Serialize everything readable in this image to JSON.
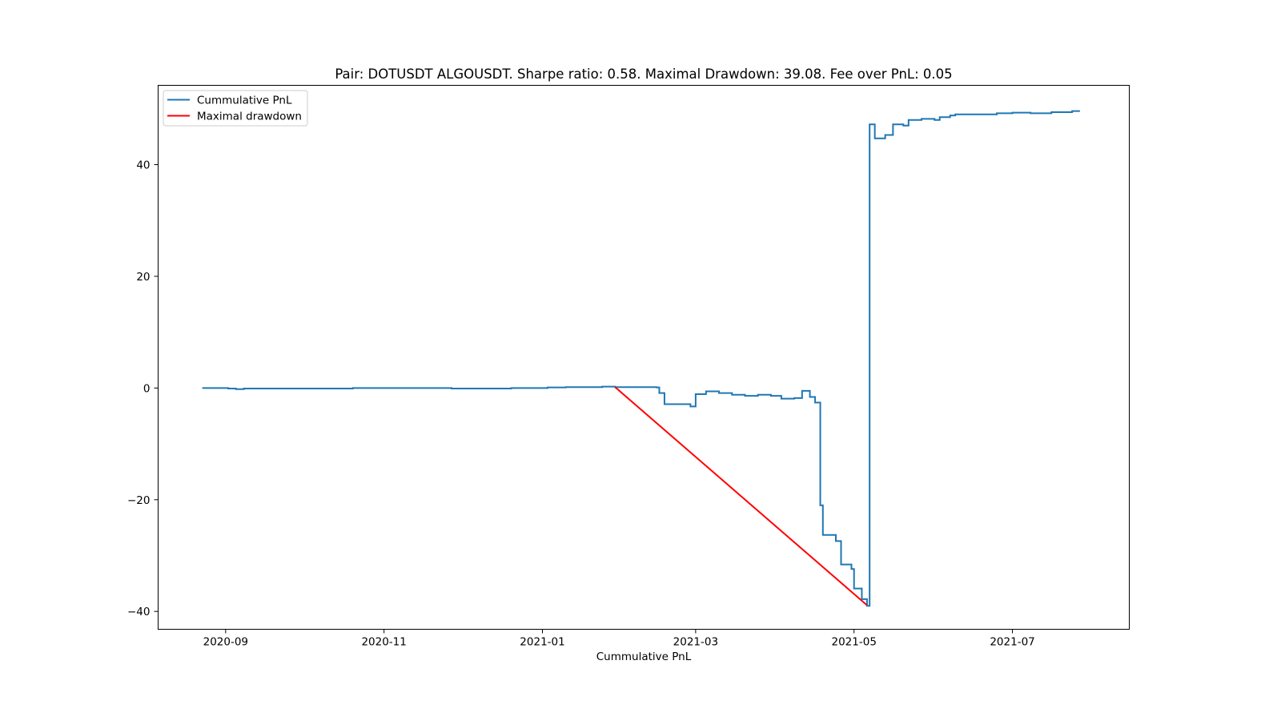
{
  "chart_data": {
    "type": "line",
    "title": "Pair: DOTUSDT ALGOUSDT. Sharpe ratio: 0.58. Maximal Drawdown: 39.08. Fee over PnL: 0.05",
    "xlabel": "Cummulative PnL",
    "ylabel": "",
    "x_type": "date",
    "xlim": [
      "2020-08-06",
      "2021-08-15"
    ],
    "ylim": [
      -43.2,
      54.2
    ],
    "x_ticks": [
      "2020-09-01",
      "2020-11-01",
      "2021-01-01",
      "2021-03-01",
      "2021-05-01",
      "2021-07-01"
    ],
    "x_tick_labels": [
      "2020-09",
      "2020-11",
      "2021-01",
      "2021-03",
      "2021-05",
      "2021-07"
    ],
    "y_ticks": [
      -40,
      -20,
      0,
      20,
      40
    ],
    "y_tick_labels": [
      "−40",
      "−20",
      "0",
      "20",
      "40"
    ],
    "grid": false,
    "legend_position": "upper-left",
    "series": [
      {
        "name": "Cummulative PnL",
        "color": "#1f77b4",
        "step": true,
        "points": [
          [
            "2020-08-23",
            0.0
          ],
          [
            "2020-09-02",
            -0.1
          ],
          [
            "2020-09-05",
            -0.2
          ],
          [
            "2020-09-08",
            -0.1
          ],
          [
            "2020-10-01",
            -0.1
          ],
          [
            "2020-10-20",
            0.0
          ],
          [
            "2020-11-20",
            0.0
          ],
          [
            "2020-11-27",
            -0.1
          ],
          [
            "2020-12-20",
            0.0
          ],
          [
            "2021-01-03",
            0.1
          ],
          [
            "2021-01-10",
            0.15
          ],
          [
            "2021-01-24",
            0.25
          ],
          [
            "2021-01-29",
            0.15
          ],
          [
            "2021-02-14",
            0.1
          ],
          [
            "2021-02-15",
            -0.9
          ],
          [
            "2021-02-17",
            -2.9
          ],
          [
            "2021-02-27",
            -3.3
          ],
          [
            "2021-03-01",
            -1.1
          ],
          [
            "2021-03-05",
            -0.6
          ],
          [
            "2021-03-10",
            -0.9
          ],
          [
            "2021-03-15",
            -1.2
          ],
          [
            "2021-03-20",
            -1.4
          ],
          [
            "2021-03-25",
            -1.2
          ],
          [
            "2021-03-30",
            -1.4
          ],
          [
            "2021-04-03",
            -1.9
          ],
          [
            "2021-04-08",
            -1.8
          ],
          [
            "2021-04-11",
            -0.5
          ],
          [
            "2021-04-14",
            -1.6
          ],
          [
            "2021-04-16",
            -2.6
          ],
          [
            "2021-04-18",
            -21.0
          ],
          [
            "2021-04-19",
            -26.3
          ],
          [
            "2021-04-24",
            -27.4
          ],
          [
            "2021-04-26",
            -31.6
          ],
          [
            "2021-04-30",
            -32.4
          ],
          [
            "2021-05-01",
            -35.9
          ],
          [
            "2021-05-04",
            -37.8
          ],
          [
            "2021-05-06",
            -39.0
          ],
          [
            "2021-05-07",
            47.2
          ],
          [
            "2021-05-09",
            44.7
          ],
          [
            "2021-05-13",
            45.3
          ],
          [
            "2021-05-16",
            47.2
          ],
          [
            "2021-05-20",
            47.0
          ],
          [
            "2021-05-22",
            48.0
          ],
          [
            "2021-05-27",
            48.2
          ],
          [
            "2021-06-01",
            48.0
          ],
          [
            "2021-06-03",
            48.5
          ],
          [
            "2021-06-07",
            48.8
          ],
          [
            "2021-06-09",
            49.0
          ],
          [
            "2021-06-25",
            49.2
          ],
          [
            "2021-07-01",
            49.3
          ],
          [
            "2021-07-08",
            49.2
          ],
          [
            "2021-07-16",
            49.4
          ],
          [
            "2021-07-24",
            49.6
          ],
          [
            "2021-07-27",
            49.6
          ]
        ]
      },
      {
        "name": "Maximal drawdown",
        "color": "#ff0000",
        "step": false,
        "points": [
          [
            "2021-01-29",
            0.15
          ],
          [
            "2021-05-06",
            -38.9
          ]
        ]
      }
    ]
  }
}
